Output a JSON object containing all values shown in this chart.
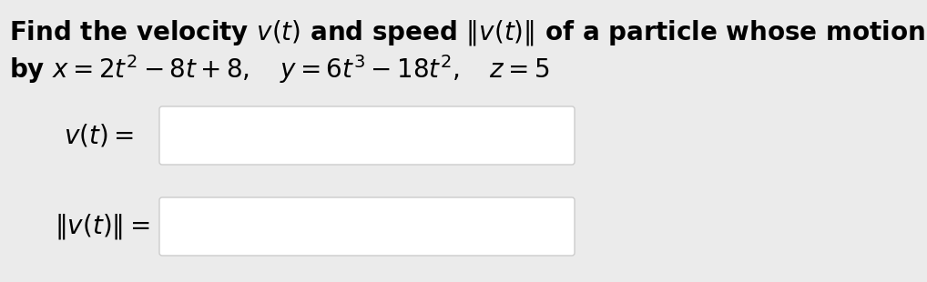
{
  "bg_color": "#ebebeb",
  "box_fill_color": "#ffffff",
  "box_edge_color": "#cccccc",
  "text_color": "#000000",
  "title_fontsize": 20,
  "label_fontsize": 20,
  "figwidth": 10.18,
  "figheight": 3.1,
  "dpi": 100
}
